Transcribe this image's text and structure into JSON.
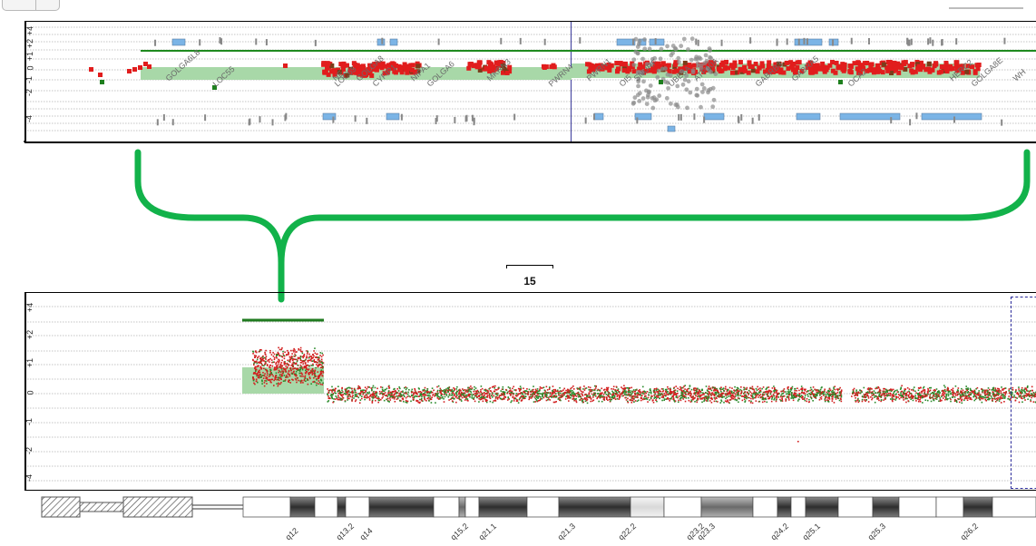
{
  "top_panel": {
    "y_axis_labels": [
      "+4",
      "+2",
      "+1",
      "0",
      "-1",
      "-2",
      "-4"
    ],
    "gene_labels": [
      "GOLGA6L8",
      "LOC55",
      "NE...",
      "LOC65",
      "GOLGA8",
      "CYFIP1",
      "NIPA1",
      "GOLGA6",
      "MKRN3",
      "PWRN4",
      "PWRN1",
      "OI5",
      "SNURF",
      "UBE3A",
      "ATP10A",
      "GABRB3",
      "GABRA5",
      "OCA2",
      "HERC2",
      "GOLGA8E",
      "WH"
    ],
    "segment_colors": {
      "gain": "#e11d1d",
      "loss": "#1e7f1e",
      "aberration_fill": "#a8d8a8",
      "aberration_line": "#1f8a1f",
      "cnv": "#7bb4e6"
    }
  },
  "zoom_bracket": {
    "color": "#12b24a"
  },
  "scale_bar": {
    "label": "15"
  },
  "bottom_panel": {
    "y_axis_labels": [
      "+4",
      "+2",
      "+1",
      "0",
      "-1",
      "-2",
      "-4"
    ]
  },
  "ideogram": {
    "band_labels": [
      "q12",
      "q13.2",
      "q14",
      "q15.2",
      "q21.1",
      "q21.3",
      "q22.2",
      "q23.2",
      "q23.3",
      "q24.2",
      "q25.1",
      "q25.3",
      "q26.2"
    ]
  }
}
